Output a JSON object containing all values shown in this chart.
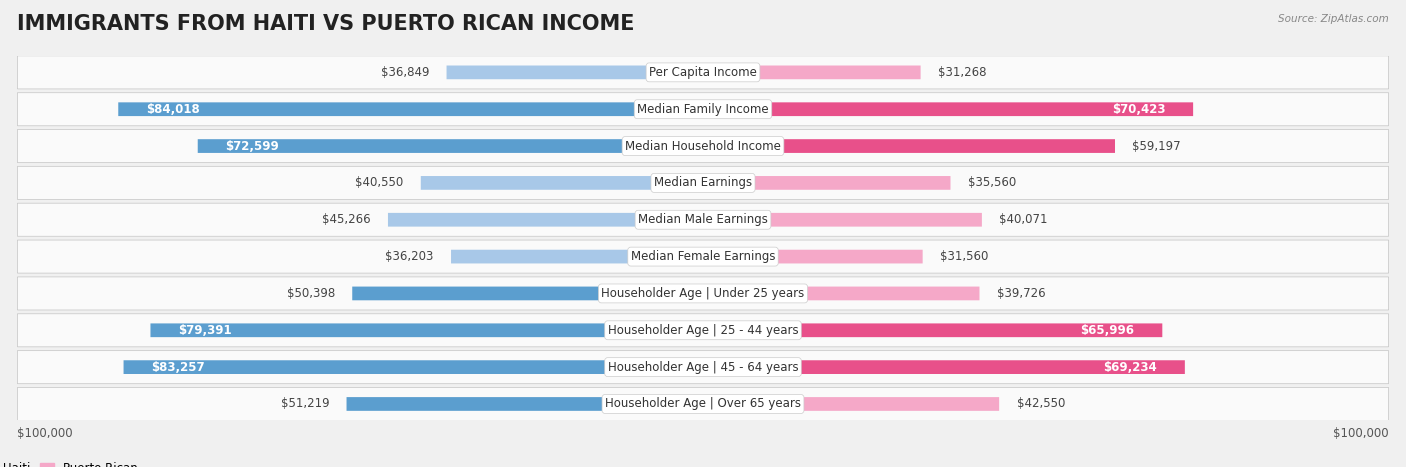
{
  "title": "IMMIGRANTS FROM HAITI VS PUERTO RICAN INCOME",
  "source": "Source: ZipAtlas.com",
  "categories": [
    "Per Capita Income",
    "Median Family Income",
    "Median Household Income",
    "Median Earnings",
    "Median Male Earnings",
    "Median Female Earnings",
    "Householder Age | Under 25 years",
    "Householder Age | 25 - 44 years",
    "Householder Age | 45 - 64 years",
    "Householder Age | Over 65 years"
  ],
  "haiti_values": [
    36849,
    84018,
    72599,
    40550,
    45266,
    36203,
    50398,
    79391,
    83257,
    51219
  ],
  "puerto_rican_values": [
    31268,
    70423,
    59197,
    35560,
    40071,
    31560,
    39726,
    65996,
    69234,
    42550
  ],
  "haiti_labels": [
    "$36,849",
    "$84,018",
    "$72,599",
    "$40,550",
    "$45,266",
    "$36,203",
    "$50,398",
    "$79,391",
    "$83,257",
    "$51,219"
  ],
  "puerto_rican_labels": [
    "$31,268",
    "$70,423",
    "$59,197",
    "$35,560",
    "$40,071",
    "$31,560",
    "$39,726",
    "$65,996",
    "$69,234",
    "$42,550"
  ],
  "haiti_color_light": "#a8c8e8",
  "haiti_color_dark": "#5b9ecf",
  "puerto_rican_color_light": "#f5a8c8",
  "puerto_rican_color_dark": "#e8508a",
  "haiti_threshold": 50000,
  "puerto_rican_threshold": 50000,
  "max_value": 100000,
  "background_color": "#f0f0f0",
  "row_bg_color": "#fafafa",
  "legend_haiti": "Immigrants from Haiti",
  "legend_puerto_rican": "Puerto Rican",
  "title_fontsize": 15,
  "label_fontsize": 8.5,
  "category_fontsize": 8.5,
  "axis_label_fontsize": 8.5
}
